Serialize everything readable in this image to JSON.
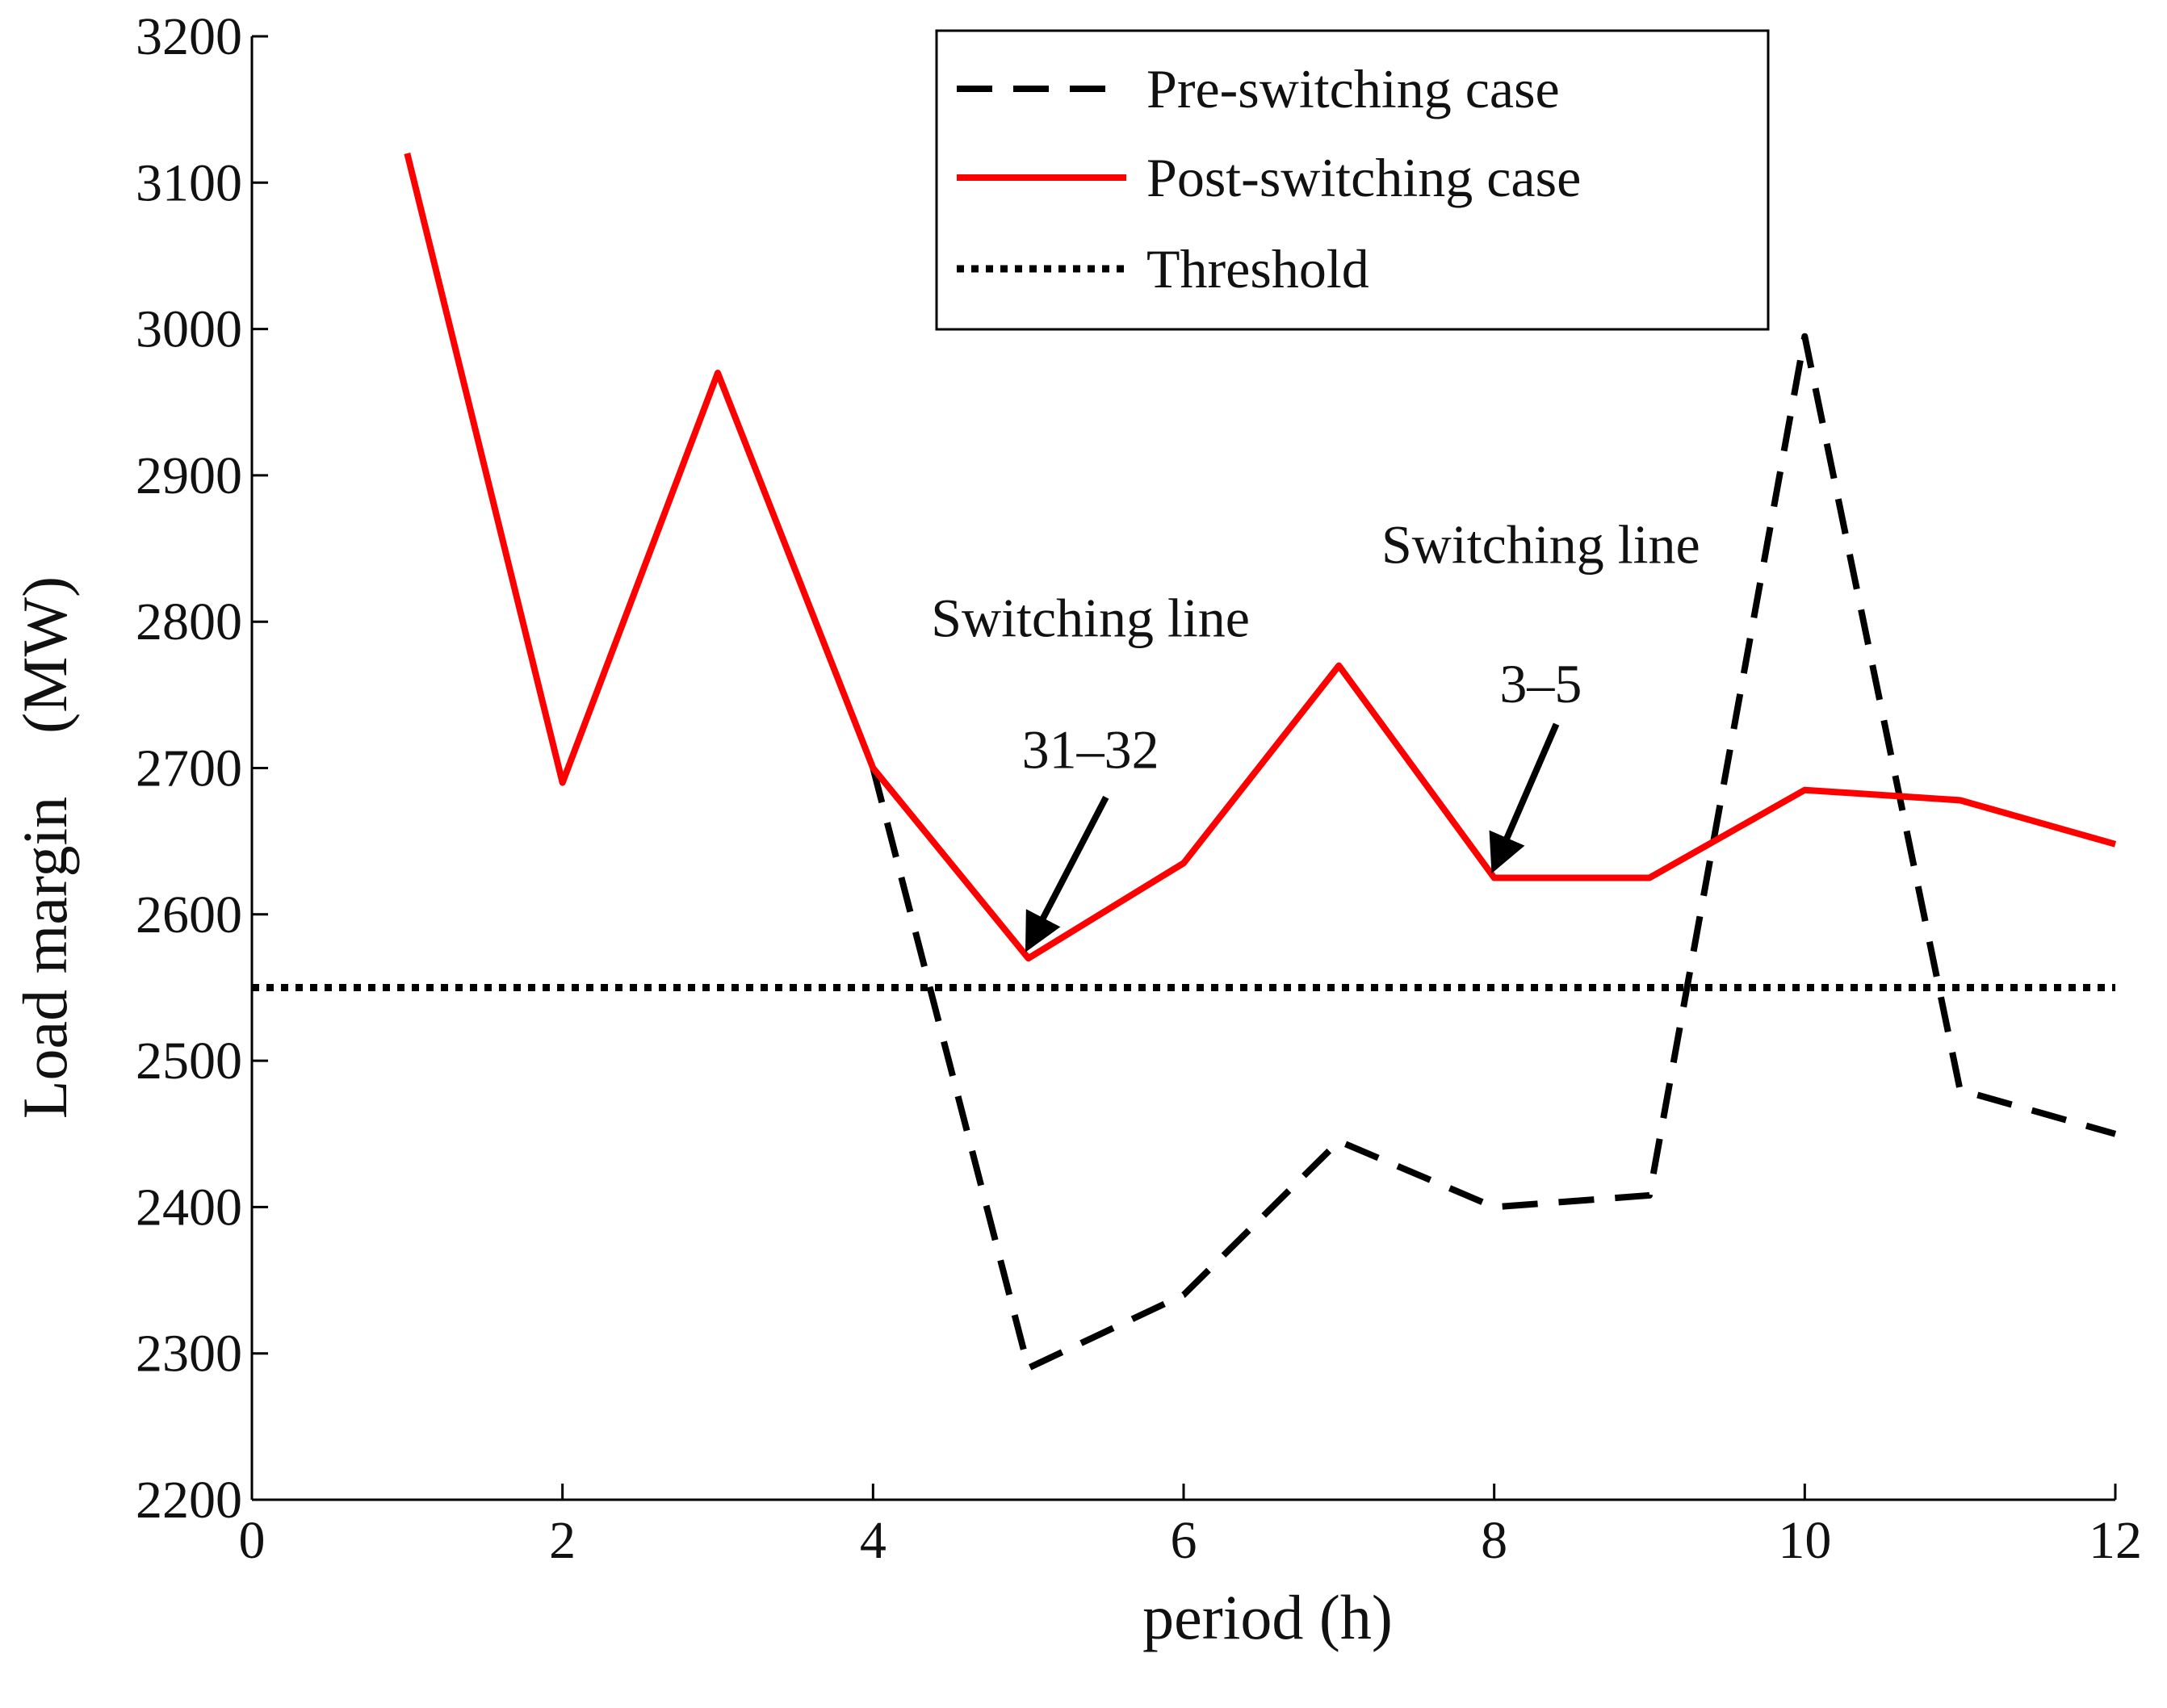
{
  "chart_data": {
    "type": "line",
    "title": "",
    "xlabel": "period (h)",
    "ylabel": "Load margin　(MW)",
    "xlim": [
      0,
      12
    ],
    "ylim": [
      2200,
      3200
    ],
    "xticks": [
      0,
      2,
      4,
      6,
      8,
      10,
      12
    ],
    "yticks": [
      2200,
      2300,
      2400,
      2500,
      2600,
      2700,
      2800,
      2900,
      3000,
      3100,
      3200
    ],
    "grid": false,
    "legend_position": "top-right",
    "series": [
      {
        "name": "Pre-switching case",
        "color": "#000000",
        "style": "dashed",
        "x": [
          4,
          5,
          6,
          7,
          8,
          9,
          10,
          11,
          12
        ],
        "values": [
          2700,
          2290,
          2340,
          2445,
          2400,
          2408,
          2995,
          2480,
          2450
        ]
      },
      {
        "name": "Post-switching case",
        "color": "#ff0000",
        "style": "solid",
        "x": [
          1,
          2,
          3,
          4,
          5,
          6,
          7,
          8,
          9,
          10,
          11,
          12
        ],
        "values": [
          3120,
          2690,
          2970,
          2700,
          2570,
          2635,
          2770,
          2625,
          2625,
          2685,
          2678,
          2648
        ]
      },
      {
        "name": "Threshold",
        "color": "#000000",
        "style": "dotted",
        "x": [
          0,
          12
        ],
        "values": [
          2550,
          2550
        ]
      }
    ],
    "annotations": [
      {
        "lines": [
          "Switching line",
          "31–32"
        ],
        "text_x": 5.4,
        "text_y": [
          2790,
          2700
        ],
        "arrow_from": [
          5.5,
          2680
        ],
        "arrow_to": [
          5.0,
          2578
        ]
      },
      {
        "lines": [
          "Switching line",
          "3–5"
        ],
        "text_x": 8.3,
        "text_y": [
          2840,
          2745
        ],
        "arrow_from": [
          8.4,
          2730
        ],
        "arrow_to": [
          8.0,
          2632
        ]
      }
    ]
  }
}
